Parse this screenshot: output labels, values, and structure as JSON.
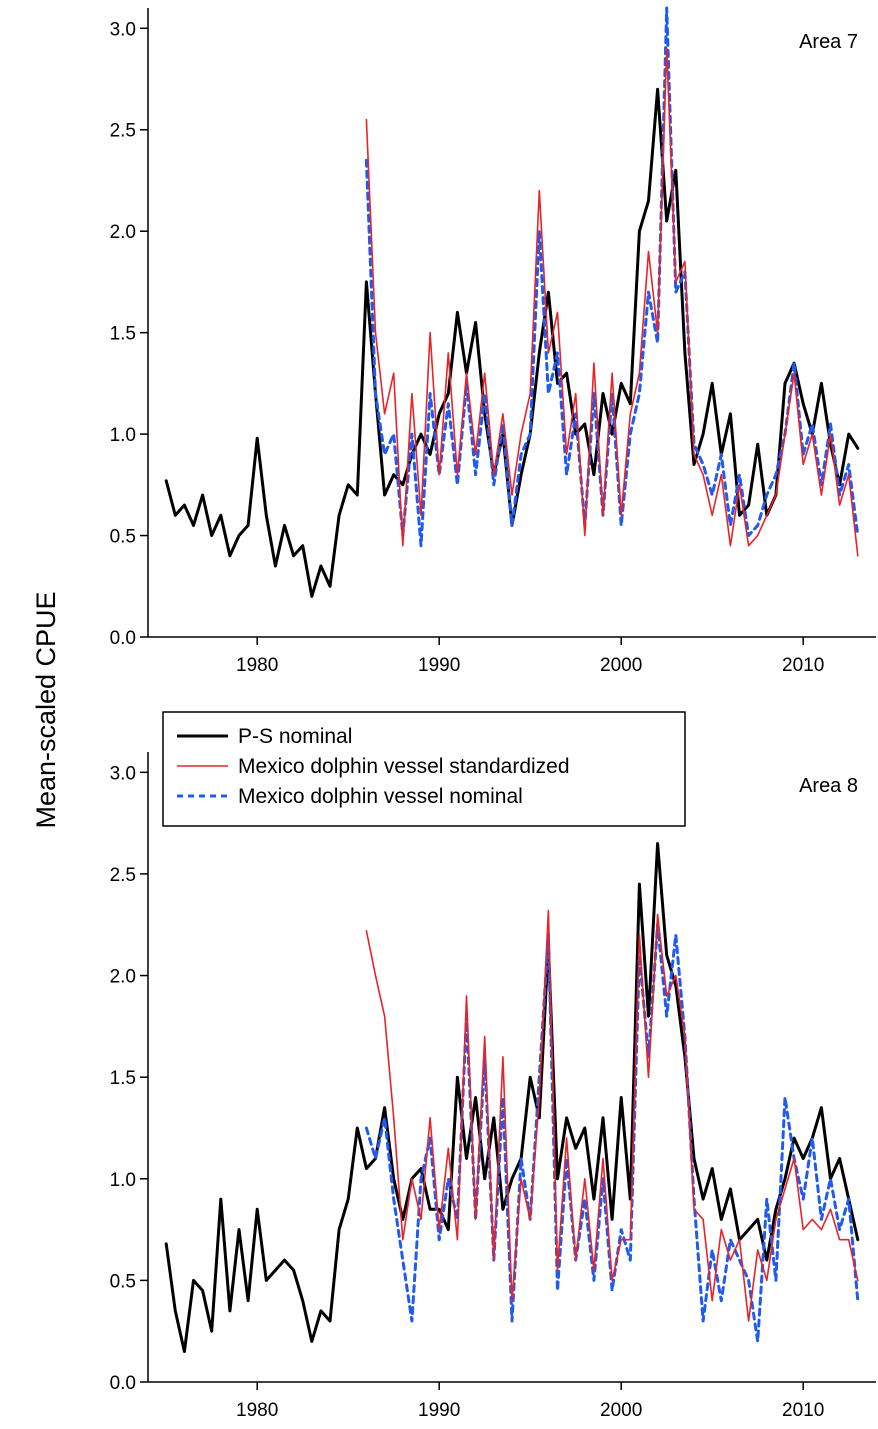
{
  "chart_data": {
    "type": "line",
    "ylabel": "Mean-scaled CPUE",
    "xlim": [
      1974,
      2014
    ],
    "ylim": [
      0,
      3.1
    ],
    "xticks": [
      "1980",
      "1990",
      "2000",
      "2010"
    ],
    "yticks": [
      "0.0",
      "0.5",
      "1.0",
      "1.5",
      "2.0",
      "2.5",
      "3.0"
    ],
    "legend": {
      "placement": "top-left of lower panel",
      "entries": [
        "P-S nominal",
        "Mexico dolphin vessel standardized",
        "Mexico dolphin vessel nominal"
      ]
    },
    "colors": {
      "ps_nominal": "#000000",
      "mexico_standardized": "#e8232a",
      "mexico_nominal": "#1f5bf0"
    },
    "panels": [
      {
        "label": "Area 7",
        "series": [
          {
            "name": "P-S nominal",
            "style": "solid-thick",
            "x": [
              1975.0,
              1975.5,
              1976.0,
              1976.5,
              1977.0,
              1977.5,
              1978.0,
              1978.5,
              1979.0,
              1979.5,
              1980.0,
              1980.5,
              1981.0,
              1981.5,
              1982.0,
              1982.5,
              1983.0,
              1983.5,
              1984.0,
              1984.5,
              1985.0,
              1985.5,
              1986.0,
              1986.5,
              1987.0,
              1987.5,
              1988.0,
              1988.5,
              1989.0,
              1989.5,
              1990.0,
              1990.5,
              1991.0,
              1991.5,
              1992.0,
              1992.5,
              1993.0,
              1993.5,
              1994.0,
              1994.5,
              1995.0,
              1995.5,
              1996.0,
              1996.5,
              1997.0,
              1997.5,
              1998.0,
              1998.5,
              1999.0,
              1999.5,
              2000.0,
              2000.5,
              2001.0,
              2001.5,
              2002.0,
              2002.5,
              2003.0,
              2003.5,
              2004.0,
              2004.5,
              2005.0,
              2005.5,
              2006.0,
              2006.5,
              2007.0,
              2007.5,
              2008.0,
              2008.5,
              2009.0,
              2009.5,
              2010.0,
              2010.5,
              2011.0,
              2011.5,
              2012.0,
              2012.5,
              2013.0
            ],
            "values": [
              0.77,
              0.6,
              0.65,
              0.55,
              0.7,
              0.5,
              0.6,
              0.4,
              0.5,
              0.55,
              0.98,
              0.6,
              0.35,
              0.55,
              0.4,
              0.45,
              0.2,
              0.35,
              0.25,
              0.6,
              0.75,
              0.7,
              1.75,
              1.2,
              0.7,
              0.8,
              0.75,
              0.9,
              1.0,
              0.9,
              1.1,
              1.2,
              1.6,
              1.3,
              1.55,
              1.1,
              0.8,
              1.0,
              0.55,
              0.8,
              1.0,
              1.4,
              1.7,
              1.25,
              1.3,
              1.0,
              1.05,
              0.8,
              1.2,
              1.0,
              1.25,
              1.15,
              2.0,
              2.15,
              2.7,
              2.05,
              2.3,
              1.4,
              0.85,
              1.0,
              1.25,
              0.9,
              1.1,
              0.6,
              0.65,
              0.95,
              0.6,
              0.7,
              1.25,
              1.35,
              1.15,
              1.0,
              1.25,
              0.95,
              0.75,
              1.0,
              0.93
            ]
          },
          {
            "name": "Mexico dolphin vessel standardized",
            "style": "solid-thin",
            "x": [
              1986.0,
              1986.5,
              1987.0,
              1987.5,
              1988.0,
              1988.5,
              1989.0,
              1989.5,
              1990.0,
              1990.5,
              1991.0,
              1991.5,
              1992.0,
              1992.5,
              1993.0,
              1993.5,
              1994.0,
              1994.5,
              1995.0,
              1995.5,
              1996.0,
              1996.5,
              1997.0,
              1997.5,
              1998.0,
              1998.5,
              1999.0,
              1999.5,
              2000.0,
              2000.5,
              2001.0,
              2001.5,
              2002.0,
              2002.5,
              2003.0,
              2003.5,
              2004.0,
              2004.5,
              2005.0,
              2005.5,
              2006.0,
              2006.5,
              2007.0,
              2007.5,
              2008.0,
              2008.5,
              2009.0,
              2009.5,
              2010.0,
              2010.5,
              2011.0,
              2011.5,
              2012.0,
              2012.5,
              2013.0
            ],
            "values": [
              2.55,
              1.5,
              1.1,
              1.3,
              0.45,
              1.2,
              0.6,
              1.5,
              0.8,
              1.4,
              0.8,
              1.3,
              0.9,
              1.3,
              0.8,
              1.1,
              0.7,
              1.0,
              1.2,
              2.2,
              1.4,
              1.6,
              0.9,
              1.2,
              0.5,
              1.35,
              0.6,
              1.3,
              0.6,
              1.1,
              1.3,
              1.9,
              1.5,
              2.9,
              1.75,
              1.85,
              0.9,
              0.8,
              0.6,
              0.8,
              0.45,
              0.75,
              0.45,
              0.5,
              0.6,
              0.7,
              1.0,
              1.3,
              0.85,
              1.0,
              0.7,
              1.0,
              0.65,
              0.8,
              0.4
            ]
          },
          {
            "name": "Mexico dolphin vessel nominal",
            "style": "dashed",
            "x": [
              1986.0,
              1986.5,
              1987.0,
              1987.5,
              1988.0,
              1988.5,
              1989.0,
              1989.5,
              1990.0,
              1990.5,
              1991.0,
              1991.5,
              1992.0,
              1992.5,
              1993.0,
              1993.5,
              1994.0,
              1994.5,
              1995.0,
              1995.5,
              1996.0,
              1996.5,
              1997.0,
              1997.5,
              1998.0,
              1998.5,
              1999.0,
              1999.5,
              2000.0,
              2000.5,
              2001.0,
              2001.5,
              2002.0,
              2002.5,
              2003.0,
              2003.5,
              2004.0,
              2004.5,
              2005.0,
              2005.5,
              2006.0,
              2006.5,
              2007.0,
              2007.5,
              2008.0,
              2008.5,
              2009.0,
              2009.5,
              2010.0,
              2010.5,
              2011.0,
              2011.5,
              2012.0,
              2012.5,
              2013.0
            ],
            "values": [
              2.35,
              1.2,
              0.9,
              1.0,
              0.5,
              1.0,
              0.45,
              1.2,
              0.8,
              1.15,
              0.75,
              1.25,
              0.8,
              1.2,
              0.75,
              1.05,
              0.55,
              0.9,
              1.0,
              2.0,
              1.2,
              1.4,
              0.8,
              1.1,
              0.55,
              1.2,
              0.6,
              1.2,
              0.55,
              1.0,
              1.2,
              1.7,
              1.45,
              3.1,
              1.7,
              1.8,
              0.95,
              0.85,
              0.7,
              0.9,
              0.55,
              0.8,
              0.5,
              0.55,
              0.7,
              0.8,
              1.0,
              1.35,
              0.9,
              1.05,
              0.75,
              1.05,
              0.7,
              0.85,
              0.5
            ]
          }
        ]
      },
      {
        "label": "Area 8",
        "series": [
          {
            "name": "P-S nominal",
            "style": "solid-thick",
            "x": [
              1975.0,
              1975.5,
              1976.0,
              1976.5,
              1977.0,
              1977.5,
              1978.0,
              1978.5,
              1979.0,
              1979.5,
              1980.0,
              1980.5,
              1981.0,
              1981.5,
              1982.0,
              1982.5,
              1983.0,
              1983.5,
              1984.0,
              1984.5,
              1985.0,
              1985.5,
              1986.0,
              1986.5,
              1987.0,
              1987.5,
              1988.0,
              1988.5,
              1989.0,
              1989.5,
              1990.0,
              1990.5,
              1991.0,
              1991.5,
              1992.0,
              1992.5,
              1993.0,
              1993.5,
              1994.0,
              1994.5,
              1995.0,
              1995.5,
              1996.0,
              1996.5,
              1997.0,
              1997.5,
              1998.0,
              1998.5,
              1999.0,
              1999.5,
              2000.0,
              2000.5,
              2001.0,
              2001.5,
              2002.0,
              2002.5,
              2003.0,
              2003.5,
              2004.0,
              2004.5,
              2005.0,
              2005.5,
              2006.0,
              2006.5,
              2007.0,
              2007.5,
              2008.0,
              2008.5,
              2009.0,
              2009.5,
              2010.0,
              2010.5,
              2011.0,
              2011.5,
              2012.0,
              2012.5,
              2013.0
            ],
            "values": [
              0.68,
              0.35,
              0.15,
              0.5,
              0.45,
              0.25,
              0.9,
              0.35,
              0.75,
              0.4,
              0.85,
              0.5,
              0.55,
              0.6,
              0.55,
              0.4,
              0.2,
              0.35,
              0.3,
              0.75,
              0.9,
              1.25,
              1.05,
              1.1,
              1.35,
              1.0,
              0.8,
              1.0,
              1.05,
              0.85,
              0.85,
              0.75,
              1.5,
              1.1,
              1.4,
              1.0,
              1.3,
              0.85,
              1.0,
              1.1,
              1.5,
              1.3,
              2.15,
              1.0,
              1.3,
              1.15,
              1.25,
              0.9,
              1.3,
              0.8,
              1.4,
              0.9,
              2.45,
              1.8,
              2.65,
              2.1,
              1.95,
              1.6,
              1.1,
              0.9,
              1.05,
              0.8,
              0.95,
              0.7,
              0.75,
              0.8,
              0.6,
              0.85,
              1.0,
              1.2,
              1.1,
              1.2,
              1.35,
              1.0,
              1.1,
              0.9,
              0.7
            ]
          },
          {
            "name": "Mexico dolphin vessel standardized",
            "style": "solid-thin",
            "x": [
              1986.0,
              1986.5,
              1987.0,
              1987.5,
              1988.0,
              1988.5,
              1989.0,
              1989.5,
              1990.0,
              1990.5,
              1991.0,
              1991.5,
              1992.0,
              1992.5,
              1993.0,
              1993.5,
              1994.0,
              1994.5,
              1995.0,
              1995.5,
              1996.0,
              1996.5,
              1997.0,
              1997.5,
              1998.0,
              1998.5,
              1999.0,
              1999.5,
              2000.0,
              2000.5,
              2001.0,
              2001.5,
              2002.0,
              2002.5,
              2003.0,
              2003.5,
              2004.0,
              2004.5,
              2005.0,
              2005.5,
              2006.0,
              2006.5,
              2007.0,
              2007.5,
              2008.0,
              2008.5,
              2009.0,
              2009.5,
              2010.0,
              2010.5,
              2011.0,
              2011.5,
              2012.0,
              2012.5,
              2013.0
            ],
            "values": [
              2.22,
              2.0,
              1.8,
              1.3,
              0.7,
              1.0,
              0.8,
              1.3,
              0.75,
              1.15,
              0.7,
              1.9,
              0.8,
              1.7,
              0.6,
              1.6,
              0.4,
              1.0,
              0.8,
              1.4,
              2.32,
              0.55,
              1.2,
              0.6,
              1.0,
              0.55,
              1.1,
              0.5,
              0.7,
              0.7,
              2.2,
              1.5,
              2.3,
              1.9,
              2.0,
              1.7,
              0.85,
              0.8,
              0.4,
              0.75,
              0.6,
              0.7,
              0.3,
              0.65,
              0.5,
              0.8,
              0.95,
              1.1,
              0.75,
              0.8,
              0.75,
              0.85,
              0.7,
              0.7,
              0.5
            ]
          },
          {
            "name": "Mexico dolphin vessel nominal",
            "style": "dashed",
            "x": [
              1986.0,
              1986.5,
              1987.0,
              1987.5,
              1988.0,
              1988.5,
              1989.0,
              1989.5,
              1990.0,
              1990.5,
              1991.0,
              1991.5,
              1992.0,
              1992.5,
              1993.0,
              1993.5,
              1994.0,
              1994.5,
              1995.0,
              1995.5,
              1996.0,
              1996.5,
              1997.0,
              1997.5,
              1998.0,
              1998.5,
              1999.0,
              1999.5,
              2000.0,
              2000.5,
              2001.0,
              2001.5,
              2002.0,
              2002.5,
              2003.0,
              2003.5,
              2004.0,
              2004.5,
              2005.0,
              2005.5,
              2006.0,
              2006.5,
              2007.0,
              2007.5,
              2008.0,
              2008.5,
              2009.0,
              2009.5,
              2010.0,
              2010.5,
              2011.0,
              2011.5,
              2012.0,
              2012.5,
              2013.0
            ],
            "values": [
              1.25,
              1.1,
              1.3,
              0.9,
              0.6,
              0.3,
              1.0,
              1.2,
              0.7,
              1.0,
              0.8,
              1.8,
              0.8,
              1.6,
              0.6,
              1.4,
              0.3,
              1.1,
              0.8,
              1.5,
              2.2,
              0.45,
              1.1,
              0.6,
              0.9,
              0.5,
              1.0,
              0.45,
              0.75,
              0.6,
              2.1,
              1.6,
              2.25,
              1.8,
              2.2,
              1.7,
              0.9,
              0.3,
              0.65,
              0.4,
              0.7,
              0.6,
              0.5,
              0.2,
              0.9,
              0.5,
              1.4,
              1.1,
              0.9,
              1.2,
              0.8,
              1.0,
              0.75,
              0.9,
              0.4
            ]
          }
        ]
      }
    ]
  }
}
